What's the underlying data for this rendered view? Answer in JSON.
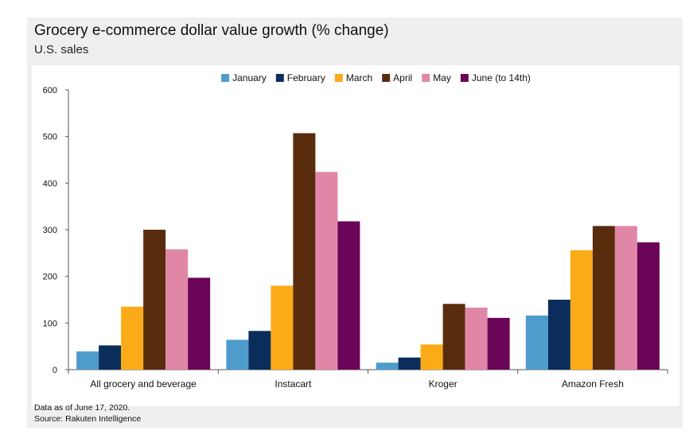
{
  "header": {
    "title": "Grocery e-commerce dollar value growth (% change)",
    "subtitle": "U.S. sales"
  },
  "footnote": {
    "line1": "Data as of June 17, 2020.",
    "line2": "Source: Rakuten Intelligence"
  },
  "chart_data": {
    "type": "bar",
    "title": "Grocery e-commerce dollar value growth (% change)",
    "subtitle": "U.S. sales",
    "xlabel": "",
    "ylabel": "",
    "ylim": [
      0,
      600
    ],
    "yticks": [
      0,
      100,
      200,
      300,
      400,
      500,
      600
    ],
    "grid": false,
    "legend": "top-center",
    "categories": [
      "All grocery and beverage",
      "Instacart",
      "Kroger",
      "Amazon Fresh"
    ],
    "series": [
      {
        "name": "January",
        "color": "#4d9ccc",
        "values": [
          39,
          64,
          15,
          116
        ]
      },
      {
        "name": "February",
        "color": "#0a2d5c",
        "values": [
          52,
          83,
          26,
          150
        ]
      },
      {
        "name": "March",
        "color": "#fbab18",
        "values": [
          135,
          180,
          54,
          256
        ]
      },
      {
        "name": "April",
        "color": "#5a2c0e",
        "values": [
          300,
          507,
          141,
          308
        ]
      },
      {
        "name": "May",
        "color": "#e087a7",
        "values": [
          258,
          424,
          133,
          308
        ]
      },
      {
        "name": "June (to 14th)",
        "color": "#6b0558",
        "values": [
          197,
          318,
          111,
          273
        ]
      }
    ]
  }
}
